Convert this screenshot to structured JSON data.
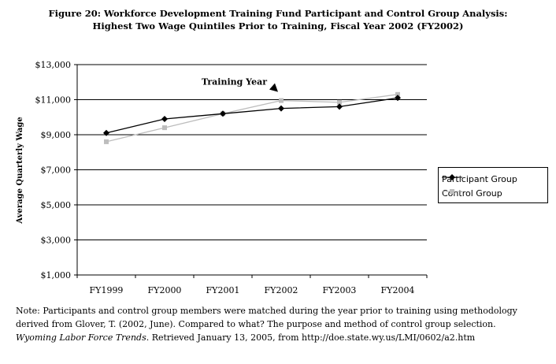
{
  "title_line1": "Figure 20: Workforce Development Training Fund Participant and Control Group Analysis:",
  "title_line2": "Highest Two Wage Quintiles Prior to Training, Fiscal Year 2002 (FY2002)",
  "chart_data": {
    "type": "line",
    "categories": [
      "FY1999",
      "FY2000",
      "FY2001",
      "FY2002",
      "FY2003",
      "FY2004"
    ],
    "series": [
      {
        "name": "Participant Group",
        "values": [
          9100,
          9900,
          10200,
          10500,
          10600,
          11100
        ],
        "color": "#000000",
        "marker": "diamond"
      },
      {
        "name": "Control Group",
        "values": [
          8600,
          9400,
          10200,
          10950,
          10850,
          11300
        ],
        "color": "#bdbdbd",
        "marker": "square"
      }
    ],
    "ylabel": "Average Quarterly Wage",
    "ylim": [
      1000,
      13000
    ],
    "yticks": [
      1000,
      3000,
      5000,
      7000,
      9000,
      11000,
      13000
    ],
    "ytick_labels": [
      "$1,000",
      "$3,000",
      "$5,000",
      "$7,000",
      "$9,000",
      "$11,000",
      "$13,000"
    ],
    "annotation": {
      "text": "Training Year",
      "category": "FY2002"
    },
    "legend": "right",
    "grid": true
  },
  "note": {
    "line1": "Note: Participants and control group members were matched during the year prior to training using methodology",
    "line2": "derived from Glover, T. (2002, June). Compared to what? The purpose and method of control group selection.",
    "line3_italic": "Wyoming Labor Force Trends",
    "line3_rest": ". Retrieved January 13, 2005, from http://doe.state.wy.us/LMI/0602/a2.htm"
  }
}
